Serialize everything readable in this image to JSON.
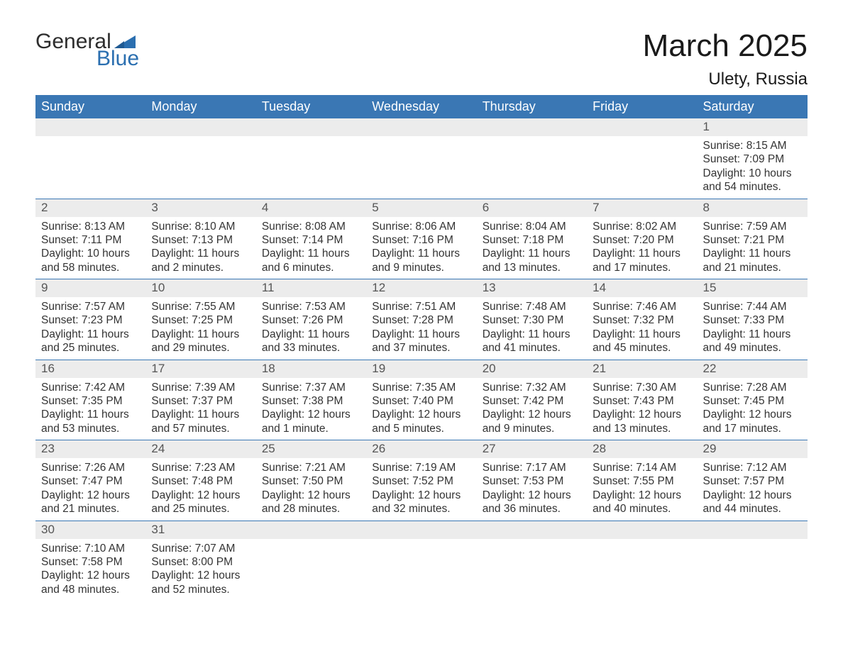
{
  "brand": {
    "name_part1": "General",
    "name_part2": "Blue"
  },
  "title": "March 2025",
  "location": "Ulety, Russia",
  "colors": {
    "header_bg": "#3a77b4",
    "header_fg": "#ffffff",
    "daynum_bg": "#ececec",
    "daynum_fg": "#555555",
    "text": "#333333",
    "row_divider": "#3a77b4",
    "brand_blue": "#2b6fb0",
    "page_bg": "#ffffff"
  },
  "typography": {
    "title_fontsize_pt": 33,
    "location_fontsize_pt": 18,
    "header_fontsize_pt": 14,
    "daynum_fontsize_pt": 13,
    "detail_fontsize_pt": 12,
    "logo_fontsize_pt": 22
  },
  "day_headers": [
    "Sunday",
    "Monday",
    "Tuesday",
    "Wednesday",
    "Thursday",
    "Friday",
    "Saturday"
  ],
  "weeks": [
    [
      {
        "blank": true
      },
      {
        "blank": true
      },
      {
        "blank": true
      },
      {
        "blank": true
      },
      {
        "blank": true
      },
      {
        "blank": true
      },
      {
        "day": "1",
        "sunrise": "Sunrise: 8:15 AM",
        "sunset": "Sunset: 7:09 PM",
        "daylight": "Daylight: 10 hours and 54 minutes."
      }
    ],
    [
      {
        "day": "2",
        "sunrise": "Sunrise: 8:13 AM",
        "sunset": "Sunset: 7:11 PM",
        "daylight": "Daylight: 10 hours and 58 minutes."
      },
      {
        "day": "3",
        "sunrise": "Sunrise: 8:10 AM",
        "sunset": "Sunset: 7:13 PM",
        "daylight": "Daylight: 11 hours and 2 minutes."
      },
      {
        "day": "4",
        "sunrise": "Sunrise: 8:08 AM",
        "sunset": "Sunset: 7:14 PM",
        "daylight": "Daylight: 11 hours and 6 minutes."
      },
      {
        "day": "5",
        "sunrise": "Sunrise: 8:06 AM",
        "sunset": "Sunset: 7:16 PM",
        "daylight": "Daylight: 11 hours and 9 minutes."
      },
      {
        "day": "6",
        "sunrise": "Sunrise: 8:04 AM",
        "sunset": "Sunset: 7:18 PM",
        "daylight": "Daylight: 11 hours and 13 minutes."
      },
      {
        "day": "7",
        "sunrise": "Sunrise: 8:02 AM",
        "sunset": "Sunset: 7:20 PM",
        "daylight": "Daylight: 11 hours and 17 minutes."
      },
      {
        "day": "8",
        "sunrise": "Sunrise: 7:59 AM",
        "sunset": "Sunset: 7:21 PM",
        "daylight": "Daylight: 11 hours and 21 minutes."
      }
    ],
    [
      {
        "day": "9",
        "sunrise": "Sunrise: 7:57 AM",
        "sunset": "Sunset: 7:23 PM",
        "daylight": "Daylight: 11 hours and 25 minutes."
      },
      {
        "day": "10",
        "sunrise": "Sunrise: 7:55 AM",
        "sunset": "Sunset: 7:25 PM",
        "daylight": "Daylight: 11 hours and 29 minutes."
      },
      {
        "day": "11",
        "sunrise": "Sunrise: 7:53 AM",
        "sunset": "Sunset: 7:26 PM",
        "daylight": "Daylight: 11 hours and 33 minutes."
      },
      {
        "day": "12",
        "sunrise": "Sunrise: 7:51 AM",
        "sunset": "Sunset: 7:28 PM",
        "daylight": "Daylight: 11 hours and 37 minutes."
      },
      {
        "day": "13",
        "sunrise": "Sunrise: 7:48 AM",
        "sunset": "Sunset: 7:30 PM",
        "daylight": "Daylight: 11 hours and 41 minutes."
      },
      {
        "day": "14",
        "sunrise": "Sunrise: 7:46 AM",
        "sunset": "Sunset: 7:32 PM",
        "daylight": "Daylight: 11 hours and 45 minutes."
      },
      {
        "day": "15",
        "sunrise": "Sunrise: 7:44 AM",
        "sunset": "Sunset: 7:33 PM",
        "daylight": "Daylight: 11 hours and 49 minutes."
      }
    ],
    [
      {
        "day": "16",
        "sunrise": "Sunrise: 7:42 AM",
        "sunset": "Sunset: 7:35 PM",
        "daylight": "Daylight: 11 hours and 53 minutes."
      },
      {
        "day": "17",
        "sunrise": "Sunrise: 7:39 AM",
        "sunset": "Sunset: 7:37 PM",
        "daylight": "Daylight: 11 hours and 57 minutes."
      },
      {
        "day": "18",
        "sunrise": "Sunrise: 7:37 AM",
        "sunset": "Sunset: 7:38 PM",
        "daylight": "Daylight: 12 hours and 1 minute."
      },
      {
        "day": "19",
        "sunrise": "Sunrise: 7:35 AM",
        "sunset": "Sunset: 7:40 PM",
        "daylight": "Daylight: 12 hours and 5 minutes."
      },
      {
        "day": "20",
        "sunrise": "Sunrise: 7:32 AM",
        "sunset": "Sunset: 7:42 PM",
        "daylight": "Daylight: 12 hours and 9 minutes."
      },
      {
        "day": "21",
        "sunrise": "Sunrise: 7:30 AM",
        "sunset": "Sunset: 7:43 PM",
        "daylight": "Daylight: 12 hours and 13 minutes."
      },
      {
        "day": "22",
        "sunrise": "Sunrise: 7:28 AM",
        "sunset": "Sunset: 7:45 PM",
        "daylight": "Daylight: 12 hours and 17 minutes."
      }
    ],
    [
      {
        "day": "23",
        "sunrise": "Sunrise: 7:26 AM",
        "sunset": "Sunset: 7:47 PM",
        "daylight": "Daylight: 12 hours and 21 minutes."
      },
      {
        "day": "24",
        "sunrise": "Sunrise: 7:23 AM",
        "sunset": "Sunset: 7:48 PM",
        "daylight": "Daylight: 12 hours and 25 minutes."
      },
      {
        "day": "25",
        "sunrise": "Sunrise: 7:21 AM",
        "sunset": "Sunset: 7:50 PM",
        "daylight": "Daylight: 12 hours and 28 minutes."
      },
      {
        "day": "26",
        "sunrise": "Sunrise: 7:19 AM",
        "sunset": "Sunset: 7:52 PM",
        "daylight": "Daylight: 12 hours and 32 minutes."
      },
      {
        "day": "27",
        "sunrise": "Sunrise: 7:17 AM",
        "sunset": "Sunset: 7:53 PM",
        "daylight": "Daylight: 12 hours and 36 minutes."
      },
      {
        "day": "28",
        "sunrise": "Sunrise: 7:14 AM",
        "sunset": "Sunset: 7:55 PM",
        "daylight": "Daylight: 12 hours and 40 minutes."
      },
      {
        "day": "29",
        "sunrise": "Sunrise: 7:12 AM",
        "sunset": "Sunset: 7:57 PM",
        "daylight": "Daylight: 12 hours and 44 minutes."
      }
    ],
    [
      {
        "day": "30",
        "sunrise": "Sunrise: 7:10 AM",
        "sunset": "Sunset: 7:58 PM",
        "daylight": "Daylight: 12 hours and 48 minutes."
      },
      {
        "day": "31",
        "sunrise": "Sunrise: 7:07 AM",
        "sunset": "Sunset: 8:00 PM",
        "daylight": "Daylight: 12 hours and 52 minutes."
      },
      {
        "blank": true
      },
      {
        "blank": true
      },
      {
        "blank": true
      },
      {
        "blank": true
      },
      {
        "blank": true
      }
    ]
  ]
}
